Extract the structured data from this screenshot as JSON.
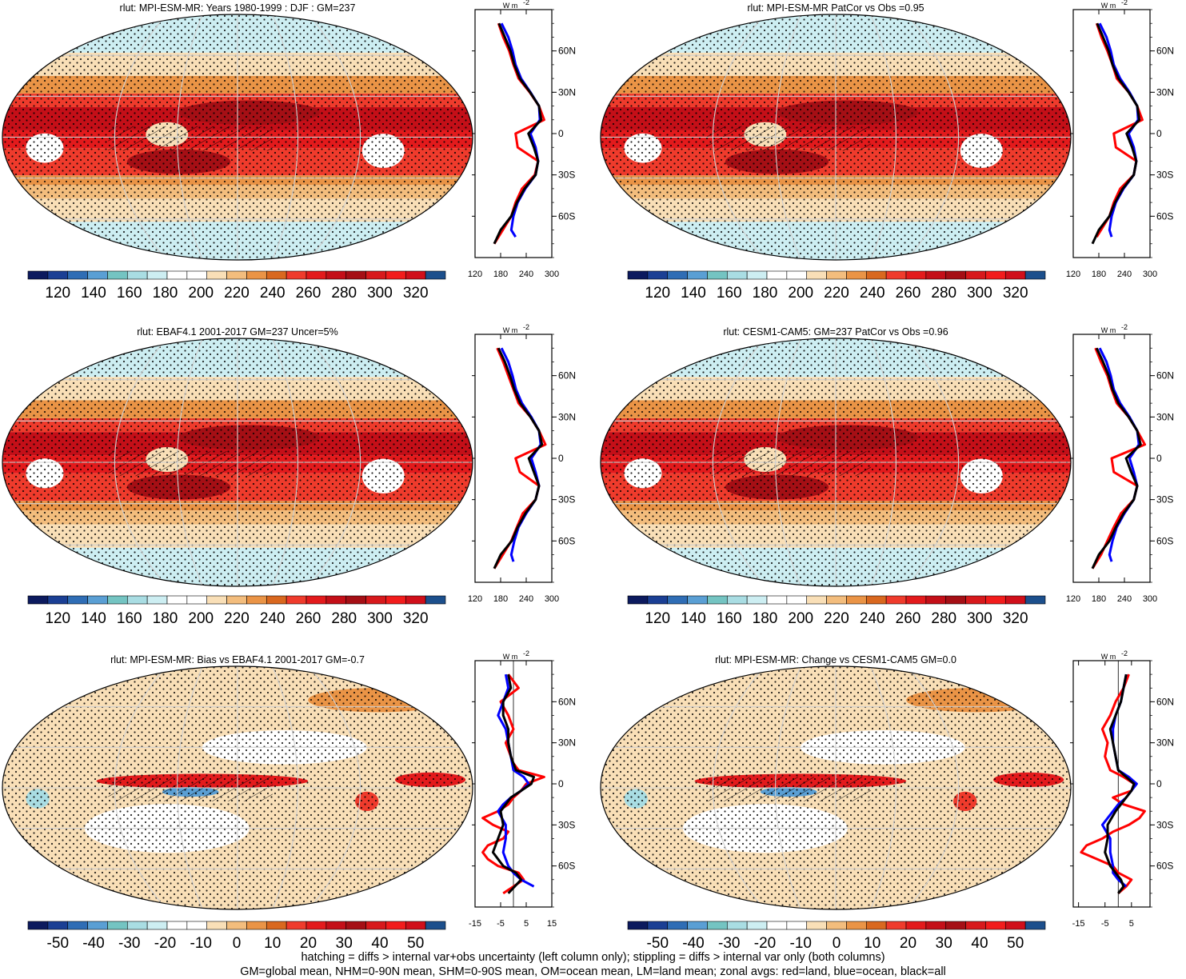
{
  "colors": {
    "abs_palette": [
      "#0c1a5e",
      "#1b3f94",
      "#2f6db5",
      "#5a9fd4",
      "#74c4c2",
      "#a9dde3",
      "#cdeef2",
      "#ffffff",
      "#ffffff",
      "#f9dfb7",
      "#f3bd7d",
      "#ea9446",
      "#d9681f",
      "#ef3b2c",
      "#e31a1c",
      "#c40f18",
      "#a50f15",
      "#d7191c",
      "#f21c1c",
      "#d00f1a",
      "#1c4f8c"
    ],
    "diff_palette": [
      "#0c1a5e",
      "#1b3f94",
      "#2f6db5",
      "#5a9fd4",
      "#74c4c2",
      "#a9dde3",
      "#cdeef2",
      "#ffffff",
      "#ffffff",
      "#f9dfb7",
      "#f3bd7d",
      "#ea9446",
      "#d9681f",
      "#ef3b2c",
      "#e31a1c",
      "#c40f18",
      "#a50f15",
      "#d7191c",
      "#f21c1c",
      "#d00f1a",
      "#1c4f8c"
    ],
    "land": "#ff0000",
    "ocean": "#0000ff",
    "all": "#000000"
  },
  "chart_data": [
    {
      "type": "heatmap",
      "title": "rlut: MPI-ESM-MR: Years 1980-1999 : DJF : GM=237",
      "colorbar_ticks": [
        "120",
        "140",
        "160",
        "180",
        "200",
        "220",
        "240",
        "260",
        "280",
        "300",
        "320"
      ]
    },
    {
      "type": "line",
      "xticks": [
        "120",
        "180",
        "240",
        "300"
      ],
      "xlim": [
        120,
        300
      ],
      "units": "W m",
      "units_sup": "-2",
      "lat_ticks": [
        "60N",
        "30N",
        "0",
        "30S",
        "60S"
      ],
      "series": [
        {
          "color": "land",
          "lat": [
            -80,
            -70,
            -60,
            -50,
            -40,
            -30,
            -20,
            -10,
            0,
            10,
            20,
            30,
            40,
            50,
            60,
            70,
            80
          ],
          "values": [
            165,
            185,
            205,
            215,
            230,
            260,
            268,
            220,
            215,
            282,
            270,
            248,
            222,
            210,
            200,
            186,
            175
          ]
        },
        {
          "color": "ocean",
          "lat": [
            -75,
            -70,
            -60,
            -50,
            -40,
            -30,
            -20,
            -10,
            0,
            10,
            20,
            30,
            40,
            50,
            60,
            70,
            80
          ],
          "values": [
            215,
            205,
            210,
            220,
            238,
            262,
            268,
            262,
            250,
            272,
            270,
            250,
            228,
            215,
            208,
            198,
            182
          ]
        },
        {
          "color": "all",
          "lat": [
            -80,
            -70,
            -60,
            -50,
            -40,
            -30,
            -20,
            -10,
            0,
            10,
            20,
            30,
            40,
            50,
            60,
            70,
            80
          ],
          "values": [
            165,
            180,
            205,
            218,
            236,
            262,
            268,
            258,
            245,
            275,
            270,
            249,
            225,
            212,
            203,
            190,
            176
          ]
        }
      ]
    },
    {
      "type": "heatmap",
      "title": "rlut: MPI-ESM-MR PatCor vs Obs =0.95",
      "colorbar_ticks": [
        "120",
        "140",
        "160",
        "180",
        "200",
        "220",
        "240",
        "260",
        "280",
        "300",
        "320"
      ]
    },
    {
      "type": "line",
      "xticks": [
        "120",
        "180",
        "240",
        "300"
      ],
      "xlim": [
        120,
        300
      ],
      "units": "W m",
      "units_sup": "-2",
      "lat_ticks": [
        "60N",
        "30N",
        "0",
        "30S",
        "60S"
      ],
      "series": [
        {
          "color": "land",
          "lat": [
            -75,
            -70,
            -60,
            -50,
            -40,
            -30,
            -20,
            -10,
            0,
            10,
            20,
            30,
            40,
            50,
            60,
            70,
            80
          ],
          "values": [
            175,
            185,
            205,
            215,
            230,
            262,
            268,
            220,
            215,
            282,
            270,
            250,
            222,
            212,
            200,
            186,
            175
          ]
        },
        {
          "color": "ocean",
          "lat": [
            -75,
            -70,
            -60,
            -50,
            -40,
            -30,
            -20,
            -10,
            0,
            10,
            20,
            30,
            40,
            50,
            60,
            70,
            80
          ],
          "values": [
            210,
            205,
            210,
            220,
            238,
            262,
            268,
            262,
            250,
            272,
            270,
            252,
            230,
            215,
            208,
            198,
            182
          ]
        },
        {
          "color": "all",
          "lat": [
            -80,
            -70,
            -60,
            -50,
            -40,
            -30,
            -20,
            -10,
            0,
            10,
            20,
            30,
            40,
            50,
            60,
            70,
            80
          ],
          "values": [
            165,
            180,
            205,
            218,
            236,
            262,
            268,
            258,
            245,
            275,
            270,
            250,
            226,
            212,
            203,
            190,
            176
          ]
        }
      ]
    },
    {
      "type": "heatmap",
      "title": "rlut: EBAF4.1 2001-2017 GM=237 Uncer=5%",
      "colorbar_ticks": [
        "120",
        "140",
        "160",
        "180",
        "200",
        "220",
        "240",
        "260",
        "280",
        "300",
        "320"
      ]
    },
    {
      "type": "line",
      "xticks": [
        "120",
        "180",
        "240",
        "300"
      ],
      "xlim": [
        120,
        300
      ],
      "units": "W m",
      "units_sup": "-2",
      "lat_ticks": [
        "60N",
        "30N",
        "0",
        "30S",
        "60S"
      ],
      "series": [
        {
          "color": "land",
          "lat": [
            -80,
            -70,
            -60,
            -50,
            -40,
            -30,
            -20,
            -10,
            0,
            10,
            20,
            30,
            40,
            50,
            60,
            70,
            80
          ],
          "values": [
            165,
            185,
            205,
            218,
            232,
            262,
            270,
            225,
            215,
            285,
            270,
            250,
            222,
            210,
            198,
            186,
            172
          ]
        },
        {
          "color": "ocean",
          "lat": [
            -75,
            -70,
            -60,
            -50,
            -40,
            -30,
            -20,
            -10,
            0,
            10,
            20,
            30,
            40,
            50,
            60,
            70,
            80
          ],
          "values": [
            210,
            205,
            212,
            222,
            240,
            262,
            270,
            262,
            252,
            274,
            270,
            252,
            230,
            216,
            208,
            198,
            182
          ]
        },
        {
          "color": "all",
          "lat": [
            -80,
            -70,
            -60,
            -50,
            -40,
            -30,
            -20,
            -10,
            0,
            10,
            20,
            30,
            40,
            50,
            60,
            70,
            80
          ],
          "values": [
            165,
            180,
            206,
            220,
            238,
            262,
            270,
            258,
            246,
            277,
            270,
            250,
            226,
            212,
            202,
            190,
            175
          ]
        }
      ]
    },
    {
      "type": "heatmap",
      "title": "rlut: CESM1-CAM5: GM=237 PatCor vs Obs =0.96",
      "colorbar_ticks": [
        "120",
        "140",
        "160",
        "180",
        "200",
        "220",
        "240",
        "260",
        "280",
        "300",
        "320"
      ]
    },
    {
      "type": "line",
      "xticks": [
        "120",
        "180",
        "240",
        "300"
      ],
      "xlim": [
        120,
        300
      ],
      "units": "W m",
      "units_sup": "-2",
      "lat_ticks": [
        "60N",
        "30N",
        "0",
        "30S",
        "60S"
      ],
      "series": [
        {
          "color": "land",
          "lat": [
            -80,
            -70,
            -60,
            -50,
            -40,
            -30,
            -20,
            -10,
            0,
            10,
            20,
            30,
            40,
            50,
            60,
            70,
            80
          ],
          "values": [
            165,
            185,
            200,
            215,
            232,
            262,
            270,
            215,
            210,
            288,
            270,
            250,
            222,
            210,
            200,
            185,
            172
          ]
        },
        {
          "color": "ocean",
          "lat": [
            -75,
            -70,
            -60,
            -50,
            -40,
            -30,
            -20,
            -10,
            0,
            10,
            20,
            30,
            40,
            50,
            60,
            70,
            80
          ],
          "values": [
            210,
            205,
            212,
            222,
            240,
            262,
            270,
            262,
            252,
            274,
            270,
            252,
            230,
            215,
            208,
            198,
            182
          ]
        },
        {
          "color": "all",
          "lat": [
            -80,
            -70,
            -60,
            -50,
            -40,
            -30,
            -20,
            -10,
            0,
            10,
            20,
            30,
            40,
            50,
            60,
            70,
            80
          ],
          "values": [
            165,
            180,
            205,
            220,
            238,
            262,
            270,
            256,
            244,
            278,
            270,
            250,
            226,
            212,
            203,
            190,
            175
          ]
        }
      ]
    },
    {
      "type": "heatmap",
      "title": "rlut: MPI-ESM-MR: Bias vs EBAF4.1 2001-2017 GM=-0.7",
      "colorbar_ticks": [
        "-50",
        "-40",
        "-30",
        "-20",
        "-10",
        "0",
        "10",
        "20",
        "30",
        "40",
        "50"
      ]
    },
    {
      "type": "line",
      "xticks": [
        "-15",
        "-5",
        "5",
        "15"
      ],
      "xlim": [
        -15,
        15
      ],
      "units": "W m",
      "units_sup": "-2",
      "lat_ticks": [
        "60N",
        "30N",
        "0",
        "30S",
        "60S"
      ],
      "series": [
        {
          "color": "land",
          "lat": [
            -80,
            -70,
            -65,
            -60,
            -55,
            -50,
            -45,
            -40,
            -35,
            -30,
            -25,
            -20,
            -15,
            -10,
            -5,
            0,
            5,
            10,
            15,
            20,
            30,
            40,
            50,
            60,
            70,
            80
          ],
          "values": [
            -4,
            4,
            2,
            -6,
            -10,
            -12,
            -10,
            -4,
            -2,
            -8,
            -12,
            -6,
            -2,
            0,
            3,
            5,
            12,
            2,
            0,
            -1,
            -3,
            0,
            -2,
            -5,
            2,
            -2
          ]
        },
        {
          "color": "ocean",
          "lat": [
            -75,
            -70,
            -65,
            -60,
            -50,
            -40,
            -30,
            -20,
            -15,
            -10,
            -5,
            0,
            5,
            10,
            20,
            30,
            40,
            50,
            60,
            70,
            80
          ],
          "values": [
            8,
            3,
            0,
            -2,
            -4,
            -3,
            -3,
            -6,
            -4,
            -1,
            3,
            6,
            4,
            0,
            -1,
            -2,
            -3,
            -6,
            -4,
            -2,
            -3
          ]
        },
        {
          "color": "all",
          "lat": [
            -80,
            -70,
            -65,
            -60,
            -50,
            -40,
            -30,
            -20,
            -15,
            -10,
            -5,
            0,
            5,
            10,
            20,
            30,
            40,
            50,
            60,
            70,
            80
          ],
          "values": [
            -2,
            3,
            1,
            -4,
            -8,
            -6,
            -4,
            -5,
            -3,
            -1,
            3,
            7,
            8,
            1,
            -1,
            -2,
            -2,
            -4,
            -4,
            -1,
            -2
          ]
        }
      ]
    },
    {
      "type": "heatmap",
      "title": "rlut: MPI-ESM-MR: Change vs CESM1-CAM5 GM=0.0",
      "colorbar_ticks": [
        "-50",
        "-40",
        "-30",
        "-20",
        "-10",
        "0",
        "10",
        "20",
        "30",
        "40",
        "50"
      ]
    },
    {
      "type": "line",
      "xticks": [
        "-15",
        "-5",
        "5"
      ],
      "xlim": [
        -17,
        12
      ],
      "units": "W m",
      "units_sup": "-2",
      "lat_ticks": [
        "60N",
        "30N",
        "0",
        "30S",
        "60S"
      ],
      "series": [
        {
          "color": "land",
          "lat": [
            -80,
            -75,
            -70,
            -65,
            -60,
            -55,
            -50,
            -45,
            -40,
            -35,
            -30,
            -25,
            -20,
            -15,
            -10,
            -5,
            0,
            5,
            10,
            20,
            30,
            40,
            50,
            60,
            70,
            80
          ],
          "values": [
            0,
            3,
            5,
            0,
            -2,
            -8,
            -14,
            -12,
            -6,
            -2,
            4,
            8,
            10,
            2,
            -2,
            5,
            6,
            2,
            -3,
            -5,
            -4,
            -6,
            -3,
            -1,
            2,
            4
          ]
        },
        {
          "color": "ocean",
          "lat": [
            -75,
            -70,
            -65,
            -60,
            -50,
            -40,
            -30,
            -20,
            -15,
            -10,
            -5,
            0,
            5,
            10,
            20,
            30,
            40,
            50,
            60,
            70,
            80
          ],
          "values": [
            3,
            0,
            -2,
            -2,
            -3,
            -3,
            -6,
            -2,
            0,
            3,
            5,
            7,
            4,
            0,
            -1,
            -2,
            -2,
            -1,
            1,
            2,
            3
          ]
        },
        {
          "color": "all",
          "lat": [
            -80,
            -75,
            -70,
            -65,
            -60,
            -50,
            -40,
            -30,
            -20,
            -15,
            -10,
            -5,
            0,
            5,
            10,
            20,
            30,
            40,
            50,
            60,
            70,
            80
          ],
          "values": [
            0,
            2,
            1,
            -1,
            -3,
            -5,
            -4,
            -4,
            -1,
            1,
            3,
            5,
            6,
            3,
            0,
            -1,
            -2,
            -3,
            -1,
            1,
            2,
            3
          ]
        }
      ]
    }
  ],
  "footer": {
    "line1": "hatching = diffs > internal var+obs uncertainty (left column only); stippling = diffs > internal var only (both columns)",
    "line2": "GM=global mean, NHM=0-90N mean, SHM=0-90S mean, OM=ocean mean, LM=land mean; zonal avgs: red=land, blue=ocean, black=all"
  }
}
